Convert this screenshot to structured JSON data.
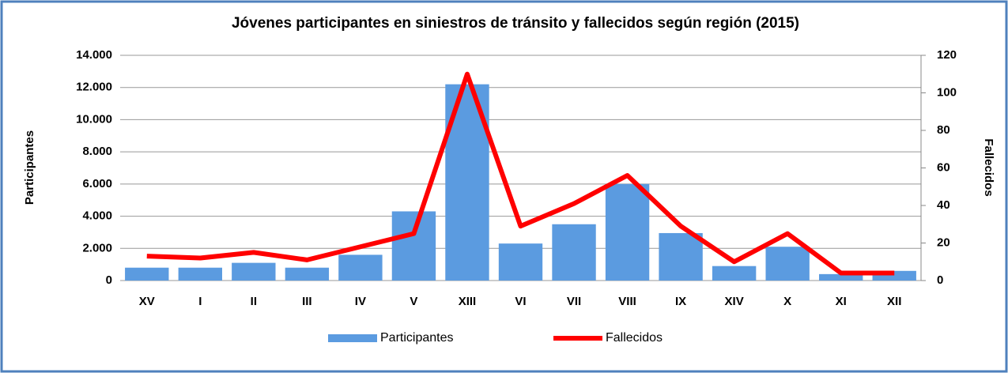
{
  "chart_data": {
    "type": "bar-line",
    "title": "Jóvenes participantes en siniestros de tránsito y fallecidos según región (2015)",
    "ylabel": "Participantes",
    "y2label": "Fallecidos",
    "categories": [
      "XV",
      "I",
      "II",
      "III",
      "IV",
      "V",
      "XIII",
      "VI",
      "VII",
      "VIII",
      "IX",
      "XIV",
      "X",
      "XI",
      "XII"
    ],
    "series": [
      {
        "name": "Participantes",
        "type": "bar",
        "color": "#5b9be0",
        "values": [
          800,
          800,
          1100,
          800,
          1600,
          4300,
          12200,
          2300,
          3500,
          6000,
          2950,
          900,
          2100,
          400,
          600
        ]
      },
      {
        "name": "Fallecidos",
        "type": "line",
        "axis": "y2",
        "color": "#ff0000",
        "values": [
          13,
          12,
          15,
          11,
          18,
          25,
          110,
          29,
          41,
          56,
          29,
          10,
          25,
          4,
          4
        ]
      }
    ],
    "ylim": [
      0,
      14000
    ],
    "yticks": [
      0,
      {
        "value": 2000,
        "label": "2.000"
      },
      {
        "value": 4000,
        "label": "4.000"
      },
      {
        "value": 6000,
        "label": "6.000"
      },
      {
        "value": 8000,
        "label": "8.000"
      },
      {
        "value": 10000,
        "label": "10.000"
      },
      {
        "value": 12000,
        "label": "12.000"
      },
      {
        "value": 14000,
        "label": "14.000"
      }
    ],
    "y2lim": [
      0,
      120
    ],
    "y2ticks": [
      0,
      20,
      40,
      60,
      80,
      100,
      120
    ],
    "grid": true,
    "legend": "bottom"
  }
}
